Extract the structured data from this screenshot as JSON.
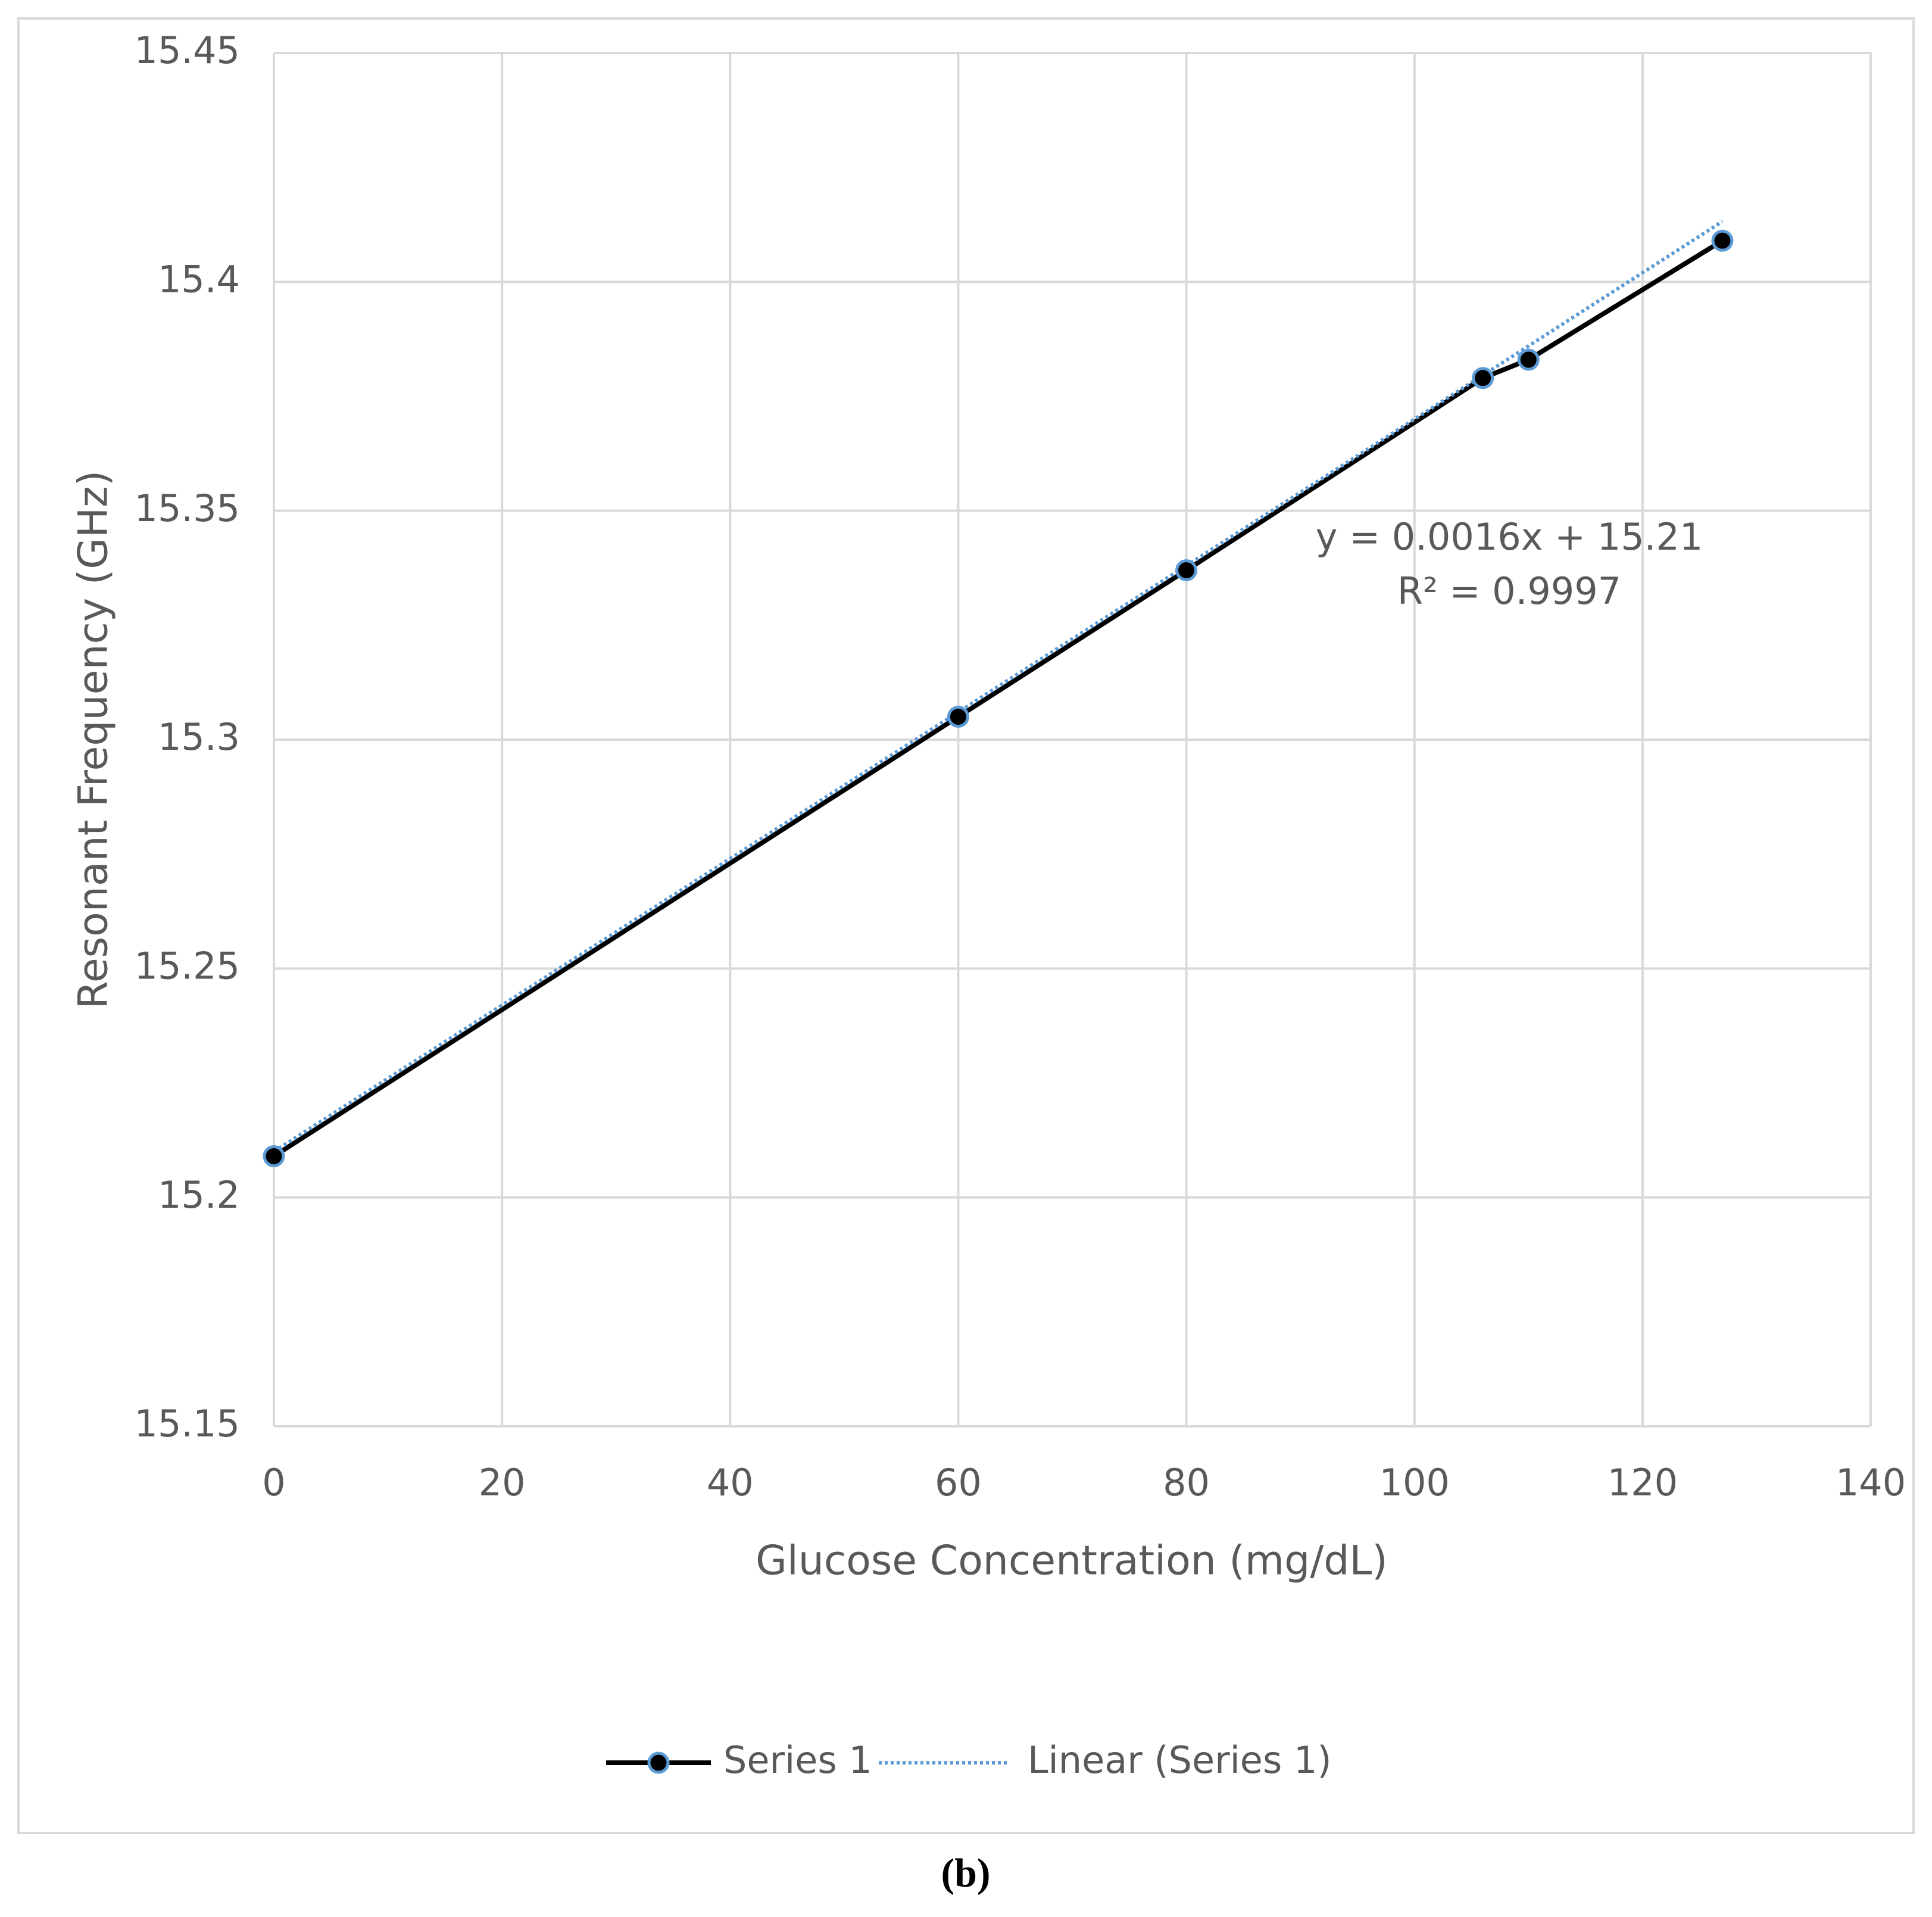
{
  "chart_data": {
    "type": "line",
    "x": [
      0,
      60,
      80,
      106,
      110,
      127
    ],
    "series": [
      {
        "name": "Series 1",
        "color": "#000000",
        "marker_edge": "#5b9bd5",
        "values": [
          15.209,
          15.305,
          15.337,
          15.379,
          15.383,
          15.409
        ]
      }
    ],
    "trendline": {
      "name": "Linear (Series 1)",
      "color": "#5b9bd5",
      "x": [
        0,
        127
      ],
      "values": [
        15.21,
        15.4132
      ]
    },
    "annotations": [
      "y = 0.0016x + 15.21",
      "R² = 0.9997"
    ],
    "xlabel": "Glucose Concentration (mg/dL)",
    "ylabel": "Resonant Frequency (GHz)",
    "xlim": [
      0,
      140
    ],
    "xticks": [
      0,
      20,
      40,
      60,
      80,
      100,
      120,
      140
    ],
    "ylim": [
      15.15,
      15.45
    ],
    "yticks": [
      15.15,
      15.2,
      15.25,
      15.3,
      15.35,
      15.4,
      15.45
    ],
    "grid": true,
    "legend": "bottom",
    "caption": "(b)"
  }
}
